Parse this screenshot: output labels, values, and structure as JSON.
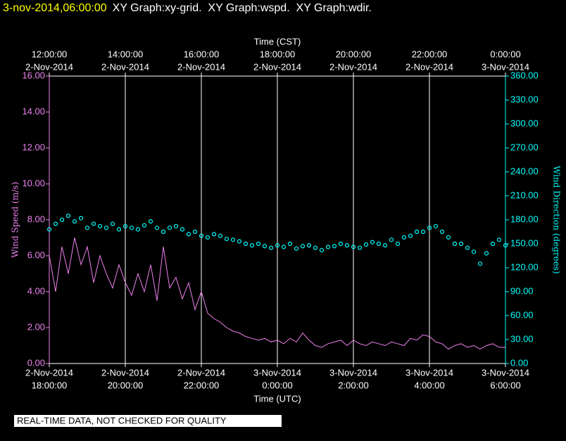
{
  "chart_data": {
    "type": "line",
    "title_time": "3-nov-2014,06:00:00",
    "title": "XY Graph:xy-grid.  XY Graph:wspd.  XY Graph:wdir.",
    "x2label": "Time (CST)",
    "xlabel": "Time (UTC)",
    "ylabel": "Wind Speed (m/s)",
    "y2label": "Wind Direction (degrees)",
    "footer": "REAL-TIME DATA, NOT CHECKED FOR QUALITY",
    "grid": true,
    "xlim": [
      "2014-11-02T18:00Z",
      "2014-11-03T06:00Z"
    ],
    "xticks": [
      {
        "value": "2014-11-02T18:00Z",
        "label": [
          "2-Nov-2014",
          "18:00:00"
        ]
      },
      {
        "value": "2014-11-02T20:00Z",
        "label": [
          "2-Nov-2014",
          "20:00:00"
        ]
      },
      {
        "value": "2014-11-02T22:00Z",
        "label": [
          "2-Nov-2014",
          "22:00:00"
        ]
      },
      {
        "value": "2014-11-03T00:00Z",
        "label": [
          "3-Nov-2014",
          "0:00:00"
        ]
      },
      {
        "value": "2014-11-03T02:00Z",
        "label": [
          "3-Nov-2014",
          "2:00:00"
        ]
      },
      {
        "value": "2014-11-03T04:00Z",
        "label": [
          "3-Nov-2014",
          "4:00:00"
        ]
      },
      {
        "value": "2014-11-03T06:00Z",
        "label": [
          "3-Nov-2014",
          "6:00:00"
        ]
      }
    ],
    "x2ticks": [
      {
        "value": "2014-11-02T12:00-06:00",
        "label": [
          "12:00:00",
          "2-Nov-2014"
        ]
      },
      {
        "value": "2014-11-02T14:00-06:00",
        "label": [
          "14:00:00",
          "2-Nov-2014"
        ]
      },
      {
        "value": "2014-11-02T16:00-06:00",
        "label": [
          "16:00:00",
          "2-Nov-2014"
        ]
      },
      {
        "value": "2014-11-02T18:00-06:00",
        "label": [
          "18:00:00",
          "2-Nov-2014"
        ]
      },
      {
        "value": "2014-11-02T20:00-06:00",
        "label": [
          "20:00:00",
          "2-Nov-2014"
        ]
      },
      {
        "value": "2014-11-02T22:00-06:00",
        "label": [
          "22:00:00",
          "2-Nov-2014"
        ]
      },
      {
        "value": "2014-11-03T00:00-06:00",
        "label": [
          "0:00:00",
          "3-Nov-2014"
        ]
      }
    ],
    "ylim": [
      0,
      16
    ],
    "yticks": [
      {
        "value": 0,
        "label": "0.00"
      },
      {
        "value": 2,
        "label": "2.00"
      },
      {
        "value": 4,
        "label": "4.00"
      },
      {
        "value": 6,
        "label": "6.00"
      },
      {
        "value": 8,
        "label": "8.00"
      },
      {
        "value": 10,
        "label": "10.00"
      },
      {
        "value": 12,
        "label": "12.00"
      },
      {
        "value": 14,
        "label": "14.00"
      },
      {
        "value": 16,
        "label": "16.00"
      }
    ],
    "y2lim": [
      0,
      360
    ],
    "y2ticks": [
      {
        "value": 0,
        "label": "0.00"
      },
      {
        "value": 30,
        "label": "30.00"
      },
      {
        "value": 60,
        "label": "60.00"
      },
      {
        "value": 90,
        "label": "90.00"
      },
      {
        "value": 120,
        "label": "120.00"
      },
      {
        "value": 150,
        "label": "150.00"
      },
      {
        "value": 180,
        "label": "180.00"
      },
      {
        "value": 210,
        "label": "210.00"
      },
      {
        "value": 240,
        "label": "240.00"
      },
      {
        "value": 270,
        "label": "270.00"
      },
      {
        "value": 300,
        "label": "300.00"
      },
      {
        "value": 330,
        "label": "330.00"
      },
      {
        "value": 360,
        "label": "360.00"
      }
    ],
    "x": [
      "2014-11-02T18:00Z",
      "2014-11-02T18:10Z",
      "2014-11-02T18:20Z",
      "2014-11-02T18:30Z",
      "2014-11-02T18:40Z",
      "2014-11-02T18:50Z",
      "2014-11-02T19:00Z",
      "2014-11-02T19:10Z",
      "2014-11-02T19:20Z",
      "2014-11-02T19:30Z",
      "2014-11-02T19:40Z",
      "2014-11-02T19:50Z",
      "2014-11-02T20:00Z",
      "2014-11-02T20:10Z",
      "2014-11-02T20:20Z",
      "2014-11-02T20:30Z",
      "2014-11-02T20:40Z",
      "2014-11-02T20:50Z",
      "2014-11-02T21:00Z",
      "2014-11-02T21:10Z",
      "2014-11-02T21:20Z",
      "2014-11-02T21:30Z",
      "2014-11-02T21:40Z",
      "2014-11-02T21:50Z",
      "2014-11-02T22:00Z",
      "2014-11-02T22:10Z",
      "2014-11-02T22:20Z",
      "2014-11-02T22:30Z",
      "2014-11-02T22:40Z",
      "2014-11-02T22:50Z",
      "2014-11-02T23:00Z",
      "2014-11-02T23:10Z",
      "2014-11-02T23:20Z",
      "2014-11-02T23:30Z",
      "2014-11-02T23:40Z",
      "2014-11-02T23:50Z",
      "2014-11-03T00:00Z",
      "2014-11-03T00:10Z",
      "2014-11-03T00:20Z",
      "2014-11-03T00:30Z",
      "2014-11-03T00:40Z",
      "2014-11-03T00:50Z",
      "2014-11-03T01:00Z",
      "2014-11-03T01:10Z",
      "2014-11-03T01:20Z",
      "2014-11-03T01:30Z",
      "2014-11-03T01:40Z",
      "2014-11-03T01:50Z",
      "2014-11-03T02:00Z",
      "2014-11-03T02:10Z",
      "2014-11-03T02:20Z",
      "2014-11-03T02:30Z",
      "2014-11-03T02:40Z",
      "2014-11-03T02:50Z",
      "2014-11-03T03:00Z",
      "2014-11-03T03:10Z",
      "2014-11-03T03:20Z",
      "2014-11-03T03:30Z",
      "2014-11-03T03:40Z",
      "2014-11-03T03:50Z",
      "2014-11-03T04:00Z",
      "2014-11-03T04:10Z",
      "2014-11-03T04:20Z",
      "2014-11-03T04:30Z",
      "2014-11-03T04:40Z",
      "2014-11-03T04:50Z",
      "2014-11-03T05:00Z",
      "2014-11-03T05:10Z",
      "2014-11-03T05:20Z",
      "2014-11-03T05:30Z",
      "2014-11-03T05:40Z",
      "2014-11-03T05:50Z",
      "2014-11-03T06:00Z"
    ],
    "series": [
      {
        "name": "wspd",
        "type": "line",
        "color": "#ee82ee",
        "values": [
          6.0,
          4.0,
          6.5,
          5.0,
          7.0,
          5.5,
          6.5,
          4.5,
          6.0,
          5.0,
          4.2,
          5.5,
          4.5,
          3.8,
          5.0,
          4.0,
          5.5,
          3.5,
          6.5,
          4.2,
          4.8,
          3.6,
          4.5,
          3.0,
          4.0,
          2.8,
          2.5,
          2.3,
          2.0,
          1.8,
          1.7,
          1.5,
          1.4,
          1.3,
          1.4,
          1.2,
          1.3,
          1.1,
          1.4,
          1.2,
          1.7,
          1.3,
          1.0,
          0.9,
          1.1,
          1.2,
          1.3,
          1.0,
          1.3,
          1.1,
          1.0,
          1.2,
          1.1,
          1.0,
          1.2,
          1.1,
          1.0,
          1.4,
          1.3,
          1.6,
          1.5,
          1.2,
          1.1,
          0.8,
          1.0,
          1.1,
          0.9,
          1.0,
          0.8,
          1.0,
          1.1,
          0.9,
          0.9
        ]
      },
      {
        "name": "wdir",
        "type": "scatter",
        "axis": "y2",
        "color": "#00ffff",
        "values": [
          168,
          175,
          180,
          185,
          178,
          182,
          170,
          175,
          172,
          170,
          175,
          168,
          172,
          170,
          168,
          173,
          178,
          170,
          165,
          170,
          172,
          168,
          162,
          165,
          160,
          158,
          162,
          160,
          156,
          155,
          153,
          150,
          148,
          150,
          147,
          145,
          148,
          146,
          150,
          144,
          147,
          148,
          145,
          142,
          146,
          147,
          150,
          148,
          146,
          145,
          149,
          152,
          150,
          148,
          155,
          150,
          158,
          160,
          165,
          165,
          170,
          172,
          165,
          158,
          150,
          150,
          145,
          140,
          125,
          138,
          150,
          155,
          148
        ]
      }
    ]
  }
}
